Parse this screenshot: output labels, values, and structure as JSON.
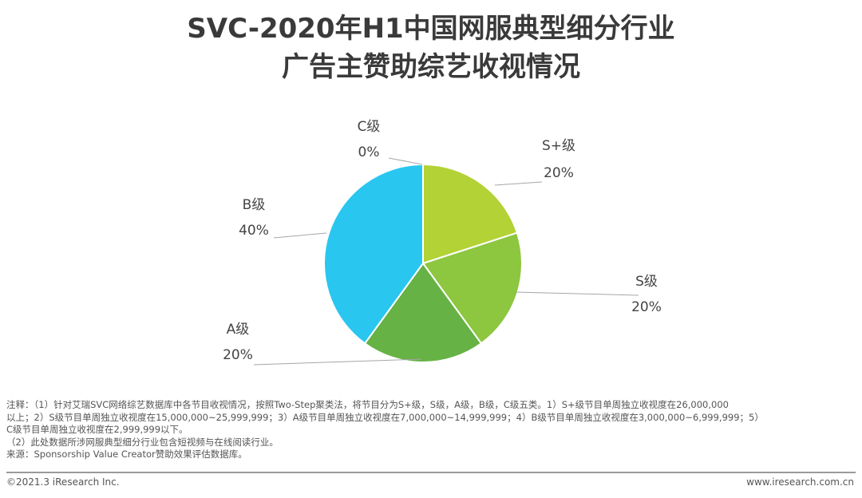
{
  "title_line1": "SVC-2020年H1中国网服典型细分行业",
  "title_line2": "广告主赞助综艺收视情况",
  "chart_data": {
    "type": "pie",
    "slices": [
      {
        "name": "S+级",
        "value": 20,
        "label": "20%",
        "color": "#b2d235"
      },
      {
        "name": "S级",
        "value": 20,
        "label": "20%",
        "color": "#8dc63f"
      },
      {
        "name": "A级",
        "value": 20,
        "label": "20%",
        "color": "#66b245"
      },
      {
        "name": "B级",
        "value": 40,
        "label": "40%",
        "color": "#29c6f0"
      },
      {
        "name": "C级",
        "value": 0,
        "label": "0%",
        "color": "#1aa0d8"
      }
    ],
    "start": "12 o'clock, clockwise"
  },
  "notes": {
    "line1": "注释：（1）针对艾瑞SVC网络综艺数据库中各节目收视情况，按照Two-Step聚类法，将节目分为S+级，S级，A级，B级，C级五类。1）S+级节目单周独立收视度在26,000,000",
    "line2": "以上；2）S级节目单周独立收视度在15,000,000~25,999,999；3）A级节目单周独立收视度在7,000,000~14,999,999；4）B级节目单周独立收视度在3,000,000~6,999,999；5）",
    "line3": "C级节目单周独立收视度在2,999,999以下。",
    "line4": "（2）此处数据所涉网服典型细分行业包含短视频与在线阅读行业。",
    "source": "来源：Sponsorship Value Creator赞助效果评估数据库。"
  },
  "footer": {
    "copyright": "©2021.3 iResearch Inc.",
    "website": "www.iresearch.com.cn"
  }
}
